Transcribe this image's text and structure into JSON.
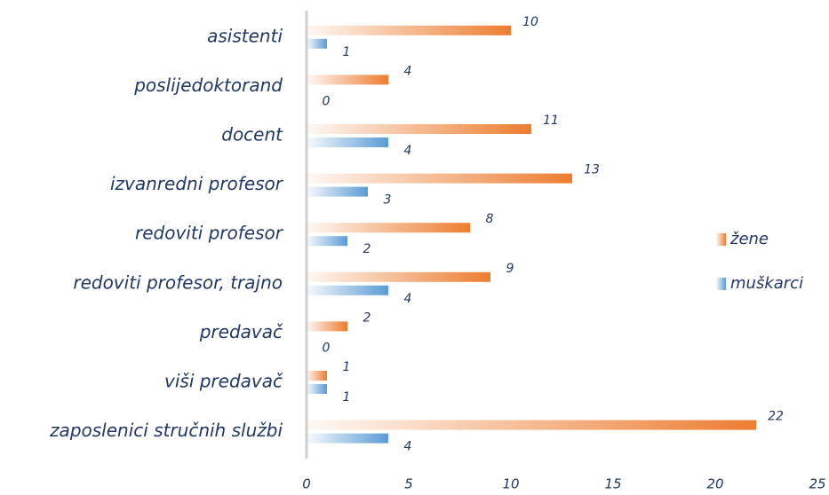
{
  "chart_data": {
    "type": "barh",
    "categories": [
      "asistenti",
      "poslijedoktorand",
      "docent",
      "izvanredni profesor",
      "redoviti profesor",
      "redoviti profesor, trajno",
      "predavač",
      "viši predavač",
      "zaposlenici stručnih službi"
    ],
    "series": [
      {
        "name": "žene",
        "color": "#ed7d31",
        "values": [
          10,
          4,
          11,
          13,
          8,
          9,
          2,
          1,
          22
        ]
      },
      {
        "name": "muškarci",
        "color": "#5b9bd5",
        "values": [
          1,
          0,
          4,
          3,
          2,
          4,
          0,
          1,
          4
        ]
      }
    ],
    "xlim": [
      0,
      25
    ],
    "xticks": [
      0,
      5,
      10,
      15,
      20,
      25
    ],
    "legend": "right"
  }
}
